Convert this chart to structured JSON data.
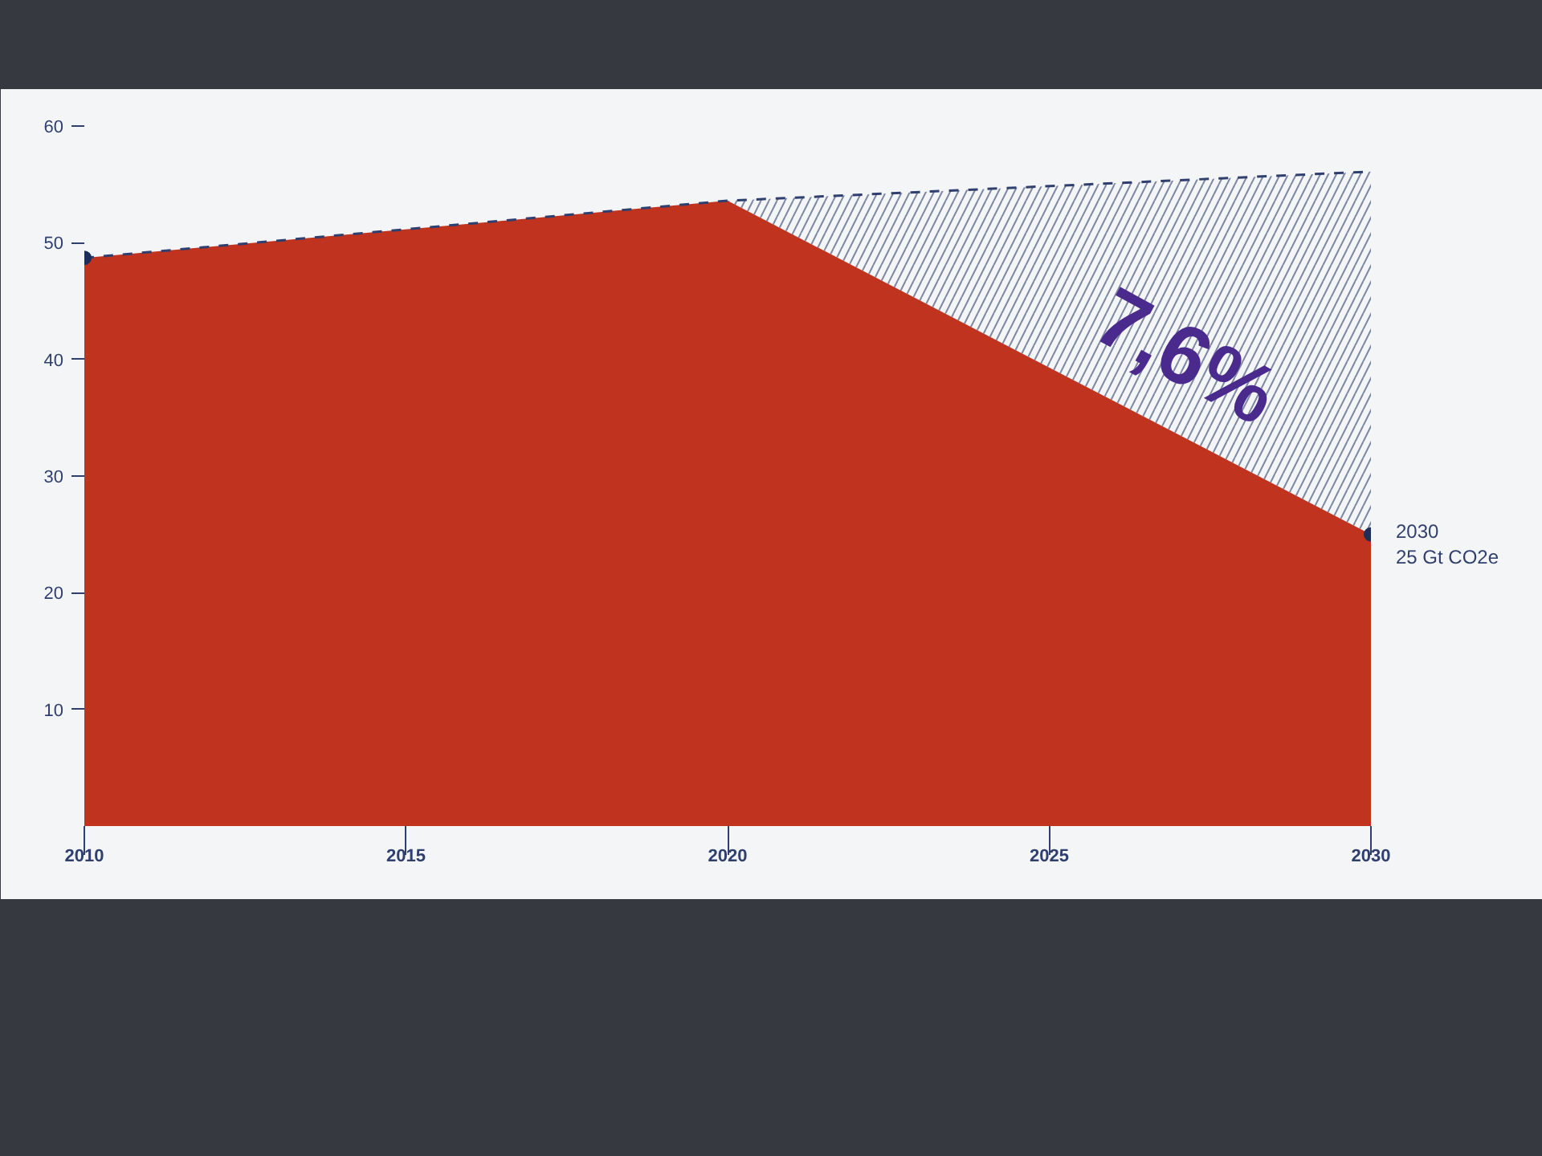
{
  "chart_data": {
    "type": "area",
    "x": [
      2010,
      2020,
      2030
    ],
    "stacked": true,
    "series": [
      {
        "color": "#c0341f",
        "values": [
          48.7,
          53.6,
          25
        ]
      },
      {
        "color": "#2f3f6e",
        "values": [
          0,
          0,
          31.1
        ],
        "line_style": "dashed"
      },
      {
        "type": "scatter",
        "color": "#1f2d5a",
        "x": [
          2010,
          2030
        ],
        "values": [
          48.7,
          25
        ],
        "marker": "circle"
      }
    ],
    "xlim": [
      2010,
      2030
    ],
    "ylim": [
      0,
      60
    ],
    "xticks": [
      2010,
      2015,
      2020,
      2025,
      2030
    ],
    "yticks": [
      10,
      20,
      30,
      40,
      50,
      60
    ],
    "grid": false,
    "annotations": [
      "7,6%",
      "2030",
      "25 Gt CO2e"
    ]
  }
}
